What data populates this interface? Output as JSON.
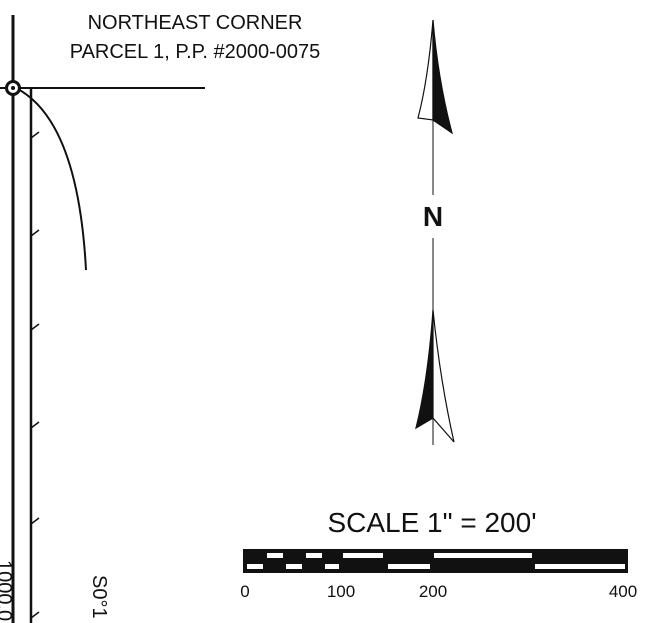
{
  "map": {
    "corner_label_line1": "NORTHEAST CORNER",
    "corner_label_line2": "PARCEL 1, P.P. #2000-0075",
    "north_label": "N",
    "scale_title": "SCALE 1\" = 200'",
    "scale_ticks": [
      "0",
      "100",
      "200",
      "400"
    ],
    "bearing_fragment": "S0°1",
    "distance_fragment": "1000.0"
  },
  "colors": {
    "ink": "#111111",
    "paper": "#ffffff"
  },
  "icons": {
    "north_arrow": "north-arrow-icon",
    "corner_monument": "survey-monument-icon"
  }
}
